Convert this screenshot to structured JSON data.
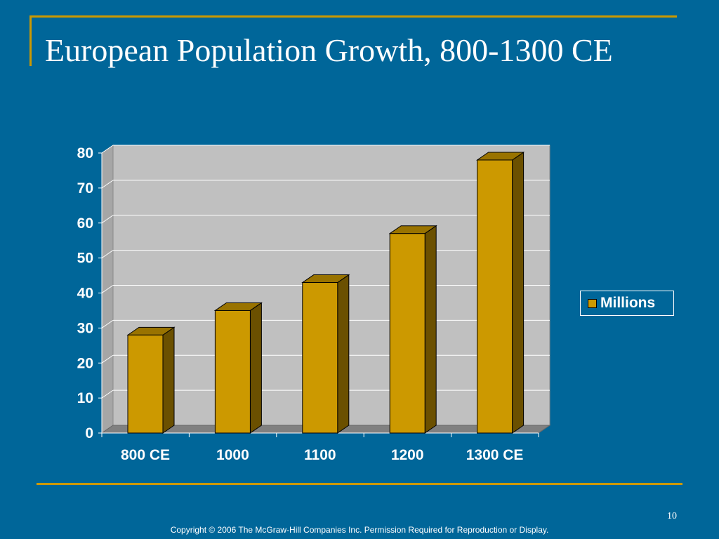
{
  "slide": {
    "title": "European Population Growth, 800-1300 CE",
    "page_number": "10",
    "copyright": "Copyright © 2006 The McGraw-Hill Companies Inc. Permission Required for Reproduction or Display."
  },
  "colors": {
    "background": "#006699",
    "accent_line": "#CC9900",
    "plot_wall": "#C0C0C0",
    "plot_floor": "#808080",
    "bar_front": "#CC9900",
    "bar_side": "#6B5000",
    "bar_top": "#997300"
  },
  "chart_data": {
    "type": "bar",
    "title": "",
    "xlabel": "",
    "ylabel": "",
    "categories": [
      "800 CE",
      "1000",
      "1100",
      "1200",
      "1300 CE"
    ],
    "series": [
      {
        "name": "Millions",
        "values": [
          28,
          35,
          43,
          57,
          78
        ]
      }
    ],
    "ylim": [
      0,
      80
    ],
    "yticks": [
      "0",
      "10",
      "20",
      "30",
      "40",
      "50",
      "60",
      "70",
      "80"
    ],
    "grid": true,
    "legend": "right",
    "style": "3d-column"
  }
}
